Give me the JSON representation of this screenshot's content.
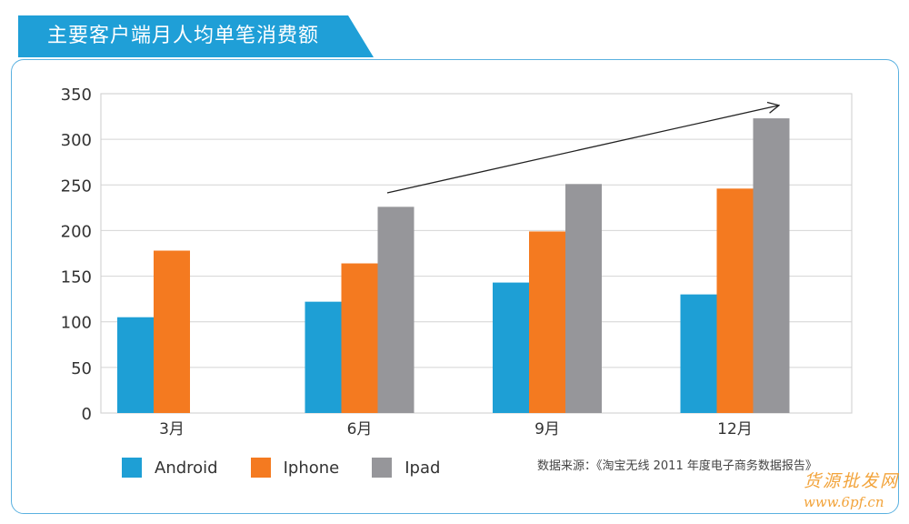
{
  "title": "主要客户端月人均单笔消费额",
  "source": "数据来源：《淘宝无线 2011 年度电子商务数据报告》",
  "watermark": {
    "line1": "货源批发网",
    "line2": "www.6pf.cn"
  },
  "colors": {
    "banner": "#1f9fd7",
    "frame": "#5ab1e0",
    "Android": "#1e9fd5",
    "Iphone": "#f47a20",
    "Ipad": "#96969a",
    "watermark": "#f2a33a"
  },
  "chart_data": {
    "type": "bar",
    "title": "主要客户端月人均单笔消费额",
    "categories": [
      "3月",
      "6月",
      "9月",
      "12月"
    ],
    "series": [
      {
        "name": "Android",
        "values": [
          105,
          122,
          143,
          130
        ]
      },
      {
        "name": "Iphone",
        "values": [
          178,
          164,
          199,
          246
        ]
      },
      {
        "name": "Ipad",
        "values": [
          null,
          226,
          251,
          323
        ]
      }
    ],
    "ylim": [
      0,
      350
    ],
    "yticks": [
      0,
      50,
      100,
      150,
      200,
      250,
      300,
      350
    ],
    "grid": true,
    "legend_position": "bottom-left",
    "annotation": "trend arrow pointing upward from 6月 to 12月"
  }
}
